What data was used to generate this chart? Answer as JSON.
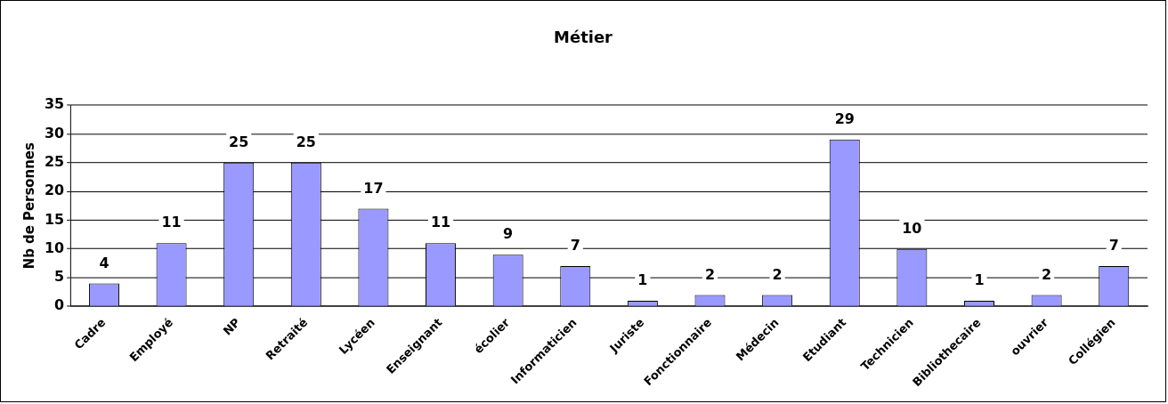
{
  "chart_data": {
    "type": "bar",
    "title": "Métier",
    "ylabel": "Nb de Personnes",
    "categories": [
      "Cadre",
      "Employé",
      "NP",
      "Retraité",
      "Lycéen",
      "Enseignant",
      "écolier",
      "Informaticien",
      "Juriste",
      "Fonctionnaire",
      "Médecin",
      "Etudiant",
      "Technicien",
      "Bibliothecaire",
      "ouvrier",
      "Collégien"
    ],
    "values": [
      4,
      11,
      25,
      25,
      17,
      11,
      9,
      7,
      1,
      2,
      2,
      29,
      10,
      1,
      2,
      7
    ],
    "color": "#9999ff",
    "ylim": [
      0,
      35
    ],
    "yticks": [
      0,
      5,
      10,
      15,
      20,
      25,
      30,
      35
    ],
    "grid": "y",
    "legend": false,
    "data_labels": true
  }
}
